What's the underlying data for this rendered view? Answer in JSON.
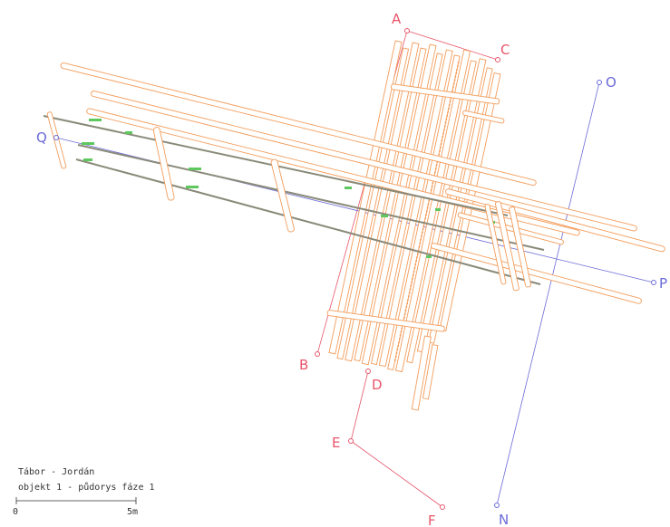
{
  "colors": {
    "timber": "#f39c5a",
    "red_points": "#e8556a",
    "blue_points": "#6a6ad8",
    "green_marks": "#5ec85e",
    "gray_beams": "#8a8a7a",
    "caption": "#333333"
  },
  "points": {
    "A": "A",
    "B": "B",
    "C": "C",
    "D": "D",
    "E": "E",
    "F": "F",
    "N": "N",
    "O": "O",
    "P": "P",
    "Q": "Q"
  },
  "caption": {
    "line1": "Tábor - Jordán",
    "line2": "objekt 1 - půdorys fáze 1",
    "scale_start": "0",
    "scale_end": "5m"
  }
}
